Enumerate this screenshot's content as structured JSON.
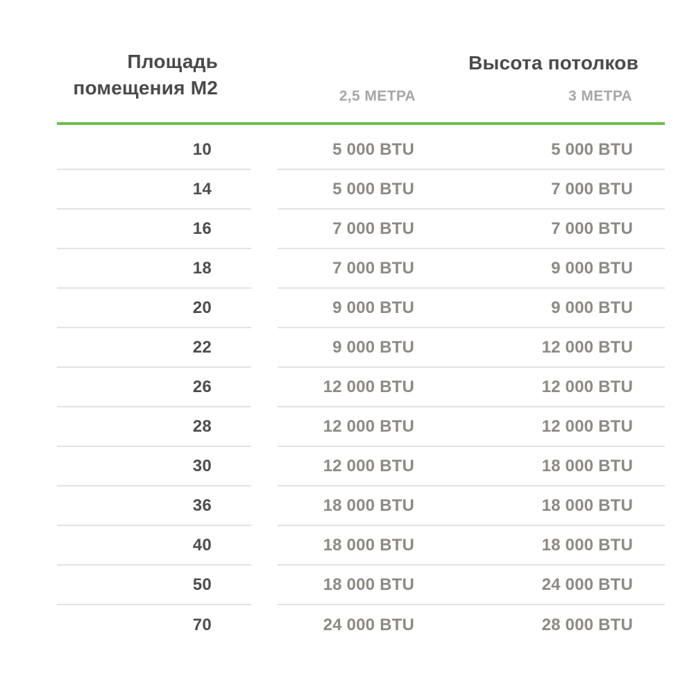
{
  "colors": {
    "accent_green": "#6abf4b",
    "header_text": "#4a4a4a",
    "subheader_text": "#a6a6a6",
    "area_text": "#4d4d4d",
    "btu_text": "#8d8a85",
    "divider": "#e2e2e2",
    "background": "#ffffff"
  },
  "header": {
    "area_title_line1": "Площадь",
    "area_title_line2": "помещения М2",
    "ceiling_title": "Высота потолков",
    "col_25m": "2,5 МЕТРА",
    "col_3m": "3 МЕТРА"
  },
  "chart_data": {
    "type": "table",
    "title": "Площадь помещения М2 / Высота потолков",
    "columns": [
      "Площадь помещения М2",
      "2,5 МЕТРА",
      "3 МЕТРА"
    ],
    "rows": [
      [
        "10",
        "5 000 BTU",
        "5 000 BTU"
      ],
      [
        "14",
        "5 000 BTU",
        "7 000 BTU"
      ],
      [
        "16",
        "7 000 BTU",
        "7 000 BTU"
      ],
      [
        "18",
        "7 000 BTU",
        "9 000 BTU"
      ],
      [
        "20",
        "9 000 BTU",
        "9 000 BTU"
      ],
      [
        "22",
        "9 000 BTU",
        "12 000 BTU"
      ],
      [
        "26",
        "12 000 BTU",
        "12 000 BTU"
      ],
      [
        "28",
        "12 000 BTU",
        "12 000 BTU"
      ],
      [
        "30",
        "12 000 BTU",
        "18 000 BTU"
      ],
      [
        "36",
        "18 000 BTU",
        "18 000 BTU"
      ],
      [
        "40",
        "18 000 BTU",
        "18 000 BTU"
      ],
      [
        "50",
        "18 000 BTU",
        "24 000 BTU"
      ],
      [
        "70",
        "24 000 BTU",
        "28 000 BTU"
      ]
    ]
  },
  "table": {
    "rows": [
      {
        "area": "10",
        "btu_25": "5 000 BTU",
        "btu_3": "5 000 BTU"
      },
      {
        "area": "14",
        "btu_25": "5 000 BTU",
        "btu_3": "7 000 BTU"
      },
      {
        "area": "16",
        "btu_25": "7 000 BTU",
        "btu_3": "7 000 BTU"
      },
      {
        "area": "18",
        "btu_25": "7 000 BTU",
        "btu_3": "9 000 BTU"
      },
      {
        "area": "20",
        "btu_25": "9 000 BTU",
        "btu_3": "9 000 BTU"
      },
      {
        "area": "22",
        "btu_25": "9 000 BTU",
        "btu_3": "12 000 BTU"
      },
      {
        "area": "26",
        "btu_25": "12 000 BTU",
        "btu_3": "12 000 BTU"
      },
      {
        "area": "28",
        "btu_25": "12 000 BTU",
        "btu_3": "12 000 BTU"
      },
      {
        "area": "30",
        "btu_25": "12 000 BTU",
        "btu_3": "18 000 BTU"
      },
      {
        "area": "36",
        "btu_25": "18 000 BTU",
        "btu_3": "18 000 BTU"
      },
      {
        "area": "40",
        "btu_25": "18 000 BTU",
        "btu_3": "18 000 BTU"
      },
      {
        "area": "50",
        "btu_25": "18 000 BTU",
        "btu_3": "24 000 BTU"
      },
      {
        "area": "70",
        "btu_25": "24 000 BTU",
        "btu_3": "28 000 BTU"
      }
    ]
  }
}
